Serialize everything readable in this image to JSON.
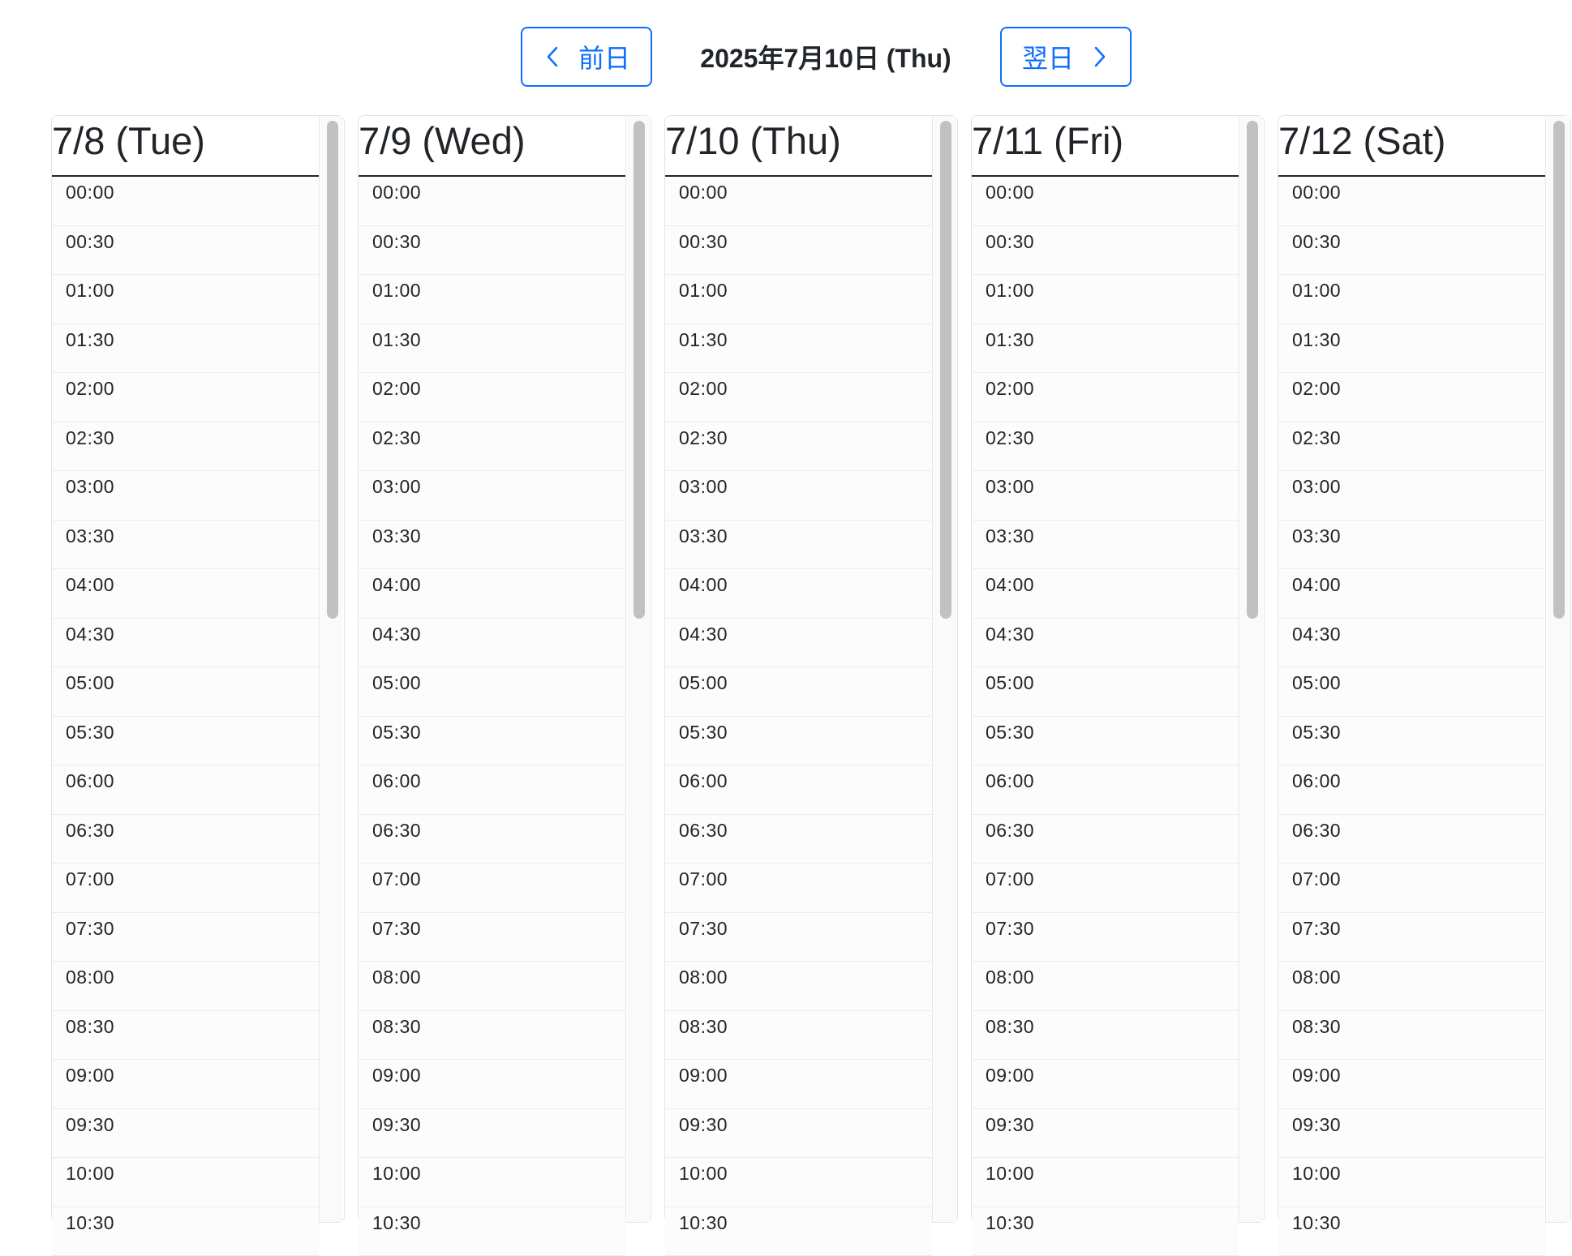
{
  "nav": {
    "prev_label": "前日",
    "next_label": "翌日",
    "prev_icon": "chevron-left-icon",
    "next_icon": "chevron-right-icon",
    "current_date": "2025年7月10日 (Thu)",
    "accent_color": "#0d6efd"
  },
  "days": [
    {
      "header": "7/8 (Tue)",
      "slots": [
        "00:00",
        "00:30",
        "01:00",
        "01:30",
        "02:00",
        "02:30",
        "03:00",
        "03:30",
        "04:00",
        "04:30",
        "05:00",
        "05:30",
        "06:00",
        "06:30",
        "07:00",
        "07:30",
        "08:00",
        "08:30",
        "09:00",
        "09:30",
        "10:00",
        "10:30"
      ]
    },
    {
      "header": "7/9 (Wed)",
      "slots": [
        "00:00",
        "00:30",
        "01:00",
        "01:30",
        "02:00",
        "02:30",
        "03:00",
        "03:30",
        "04:00",
        "04:30",
        "05:00",
        "05:30",
        "06:00",
        "06:30",
        "07:00",
        "07:30",
        "08:00",
        "08:30",
        "09:00",
        "09:30",
        "10:00",
        "10:30"
      ]
    },
    {
      "header": "7/10 (Thu)",
      "slots": [
        "00:00",
        "00:30",
        "01:00",
        "01:30",
        "02:00",
        "02:30",
        "03:00",
        "03:30",
        "04:00",
        "04:30",
        "05:00",
        "05:30",
        "06:00",
        "06:30",
        "07:00",
        "07:30",
        "08:00",
        "08:30",
        "09:00",
        "09:30",
        "10:00",
        "10:30"
      ]
    },
    {
      "header": "7/11 (Fri)",
      "slots": [
        "00:00",
        "00:30",
        "01:00",
        "01:30",
        "02:00",
        "02:30",
        "03:00",
        "03:30",
        "04:00",
        "04:30",
        "05:00",
        "05:30",
        "06:00",
        "06:30",
        "07:00",
        "07:30",
        "08:00",
        "08:30",
        "09:00",
        "09:30",
        "10:00",
        "10:30"
      ]
    },
    {
      "header": "7/12 (Sat)",
      "slots": [
        "00:00",
        "00:30",
        "01:00",
        "01:30",
        "02:00",
        "02:30",
        "03:00",
        "03:30",
        "04:00",
        "04:30",
        "05:00",
        "05:30",
        "06:00",
        "06:30",
        "07:00",
        "07:30",
        "08:00",
        "08:30",
        "09:00",
        "09:30",
        "10:00",
        "10:30"
      ]
    }
  ]
}
